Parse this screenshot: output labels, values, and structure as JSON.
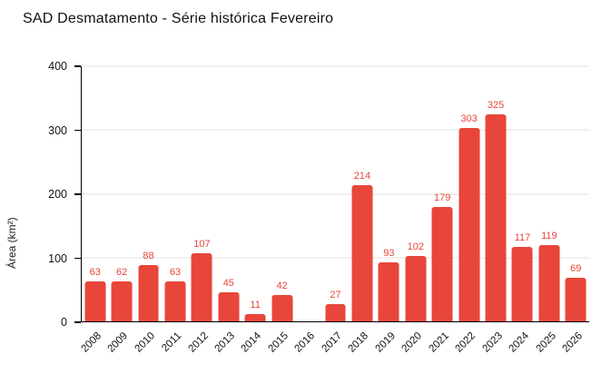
{
  "title": "SAD Desmatamento - Série histórica Fevereiro",
  "colors": {
    "bar": "#e8463a",
    "bar_label": "#e8463a",
    "grid": "#e2e2e2",
    "axis": "#000000",
    "text": "#111111"
  },
  "chart_data": {
    "type": "bar",
    "title": "SAD Desmatamento - Série histórica Fevereiro",
    "categories": [
      "2008",
      "2009",
      "2010",
      "2011",
      "2012",
      "2013",
      "2014",
      "2015",
      "2016",
      "2017",
      "2018",
      "2019",
      "2020",
      "2021",
      "2022",
      "2023",
      "2024",
      "2025",
      "2026"
    ],
    "values": [
      63,
      62,
      88,
      63,
      107,
      45,
      11,
      42,
      0,
      27,
      214,
      93,
      102,
      179,
      303,
      325,
      117,
      119,
      69
    ],
    "xlabel": "",
    "ylabel": "Área (km²)",
    "ylim": [
      0,
      400
    ],
    "yticks": [
      0,
      100,
      200,
      300,
      400
    ],
    "grid": "horizontal",
    "legend": "none",
    "data_labels_shown": true,
    "bar_color": "#e8463a"
  }
}
